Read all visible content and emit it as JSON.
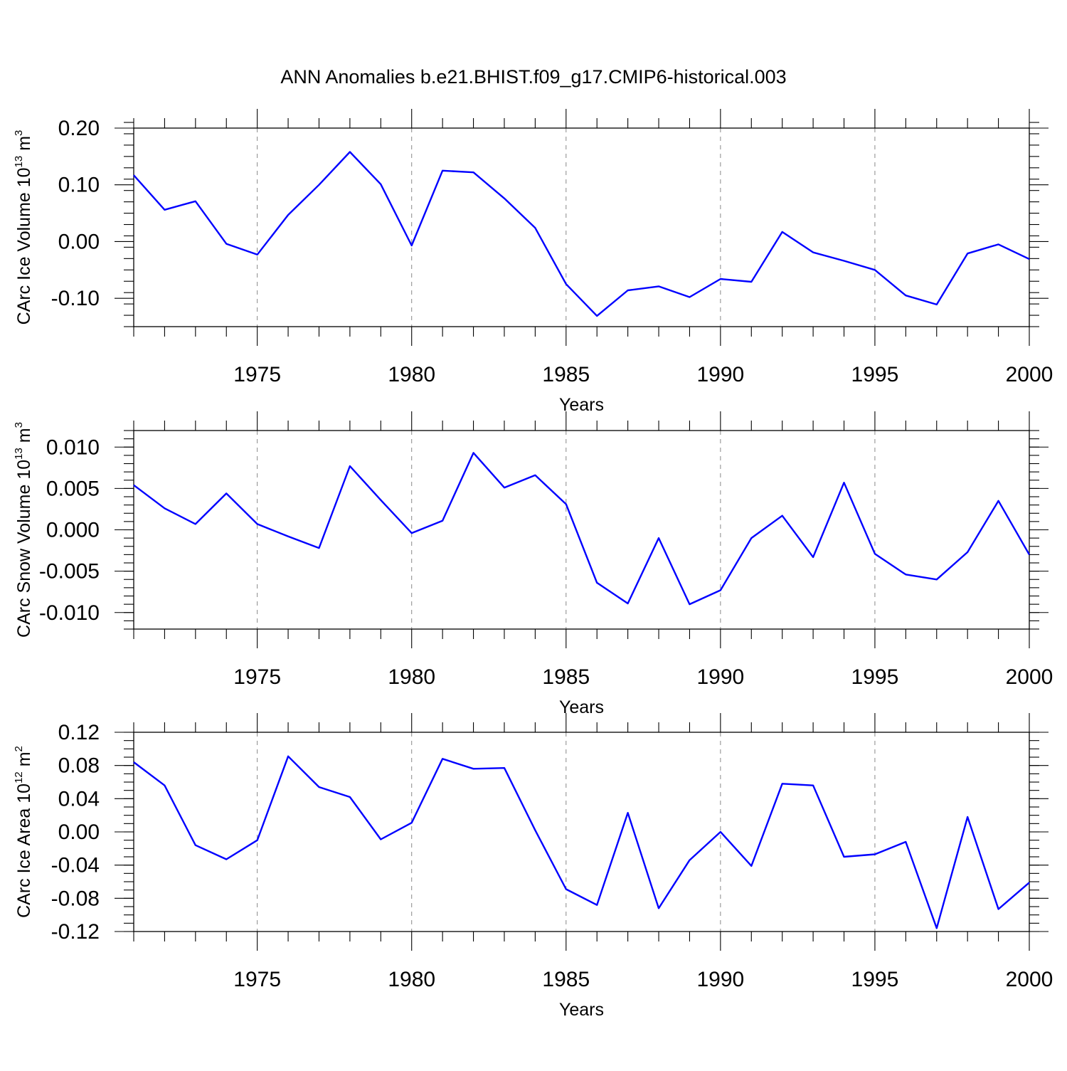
{
  "title": "ANN Anomalies b.e21.BHIST.f09_g17.CMIP6-historical.003",
  "series_color": "#0000ff",
  "chart_data": [
    {
      "type": "line",
      "title": "ANN Anomalies b.e21.BHIST.f09_g17.CMIP6-historical.003",
      "xlabel": "Years",
      "ylabel": {
        "prefix": "CArc Ice Volume 10",
        "sup": "13",
        "unit": " m",
        "unit_sup": "3"
      },
      "xlim": [
        1971,
        2000
      ],
      "ylim": [
        -0.15,
        0.2
      ],
      "x_ticks": [
        1975,
        1980,
        1985,
        1990,
        1995,
        2000
      ],
      "y_ticks": [
        0.2,
        0.1,
        0.0,
        -0.1
      ],
      "y_tick_labels": [
        "0.20",
        "0.10",
        "0.00",
        "-0.10"
      ],
      "y_minor_step": 0.02,
      "grid": "dashed vertical at 5-year ticks",
      "x": [
        1971,
        1972,
        1973,
        1974,
        1975,
        1976,
        1977,
        1978,
        1979,
        1980,
        1981,
        1982,
        1983,
        1984,
        1985,
        1986,
        1987,
        1988,
        1989,
        1990,
        1991,
        1992,
        1993,
        1994,
        1995,
        1996,
        1997,
        1998,
        1999,
        2000
      ],
      "values": [
        0.117,
        0.056,
        0.071,
        -0.004,
        -0.023,
        0.047,
        0.1,
        0.158,
        0.101,
        -0.007,
        0.125,
        0.122,
        0.076,
        0.024,
        -0.075,
        -0.131,
        -0.086,
        -0.079,
        -0.098,
        -0.066,
        -0.071,
        0.017,
        -0.019,
        -0.034,
        -0.05,
        -0.095,
        -0.111,
        -0.021,
        -0.005,
        -0.031
      ]
    },
    {
      "type": "line",
      "xlabel": "Years",
      "ylabel": {
        "prefix": "CArc Snow Volume 10",
        "sup": "13",
        "unit": " m",
        "unit_sup": "3"
      },
      "xlim": [
        1971,
        2000
      ],
      "ylim": [
        -0.012,
        0.012
      ],
      "x_ticks": [
        1975,
        1980,
        1985,
        1990,
        1995,
        2000
      ],
      "y_ticks": [
        0.01,
        0.005,
        0.0,
        -0.005,
        -0.01
      ],
      "y_tick_labels": [
        "0.010",
        "0.005",
        "0.000",
        "-0.005",
        "-0.010"
      ],
      "y_minor_step": 0.001,
      "grid": "dashed vertical at 5-year ticks",
      "x": [
        1971,
        1972,
        1973,
        1974,
        1975,
        1976,
        1977,
        1978,
        1979,
        1980,
        1981,
        1982,
        1983,
        1984,
        1985,
        1986,
        1987,
        1988,
        1989,
        1990,
        1991,
        1992,
        1993,
        1994,
        1995,
        1996,
        1997,
        1998,
        1999,
        2000
      ],
      "values": [
        0.0054,
        0.0026,
        0.0007,
        0.0044,
        0.0007,
        -0.0008,
        -0.0022,
        0.0077,
        0.0036,
        -0.0004,
        0.0011,
        0.0093,
        0.0051,
        0.0066,
        0.0031,
        -0.0064,
        -0.0089,
        -0.001,
        -0.009,
        -0.0073,
        -0.001,
        0.0017,
        -0.0033,
        0.0057,
        -0.0029,
        -0.0054,
        -0.006,
        -0.0027,
        0.0035,
        -0.003
      ]
    },
    {
      "type": "line",
      "xlabel": "Years",
      "ylabel": {
        "prefix": "CArc Ice Area 10",
        "sup": "12",
        "unit": " m",
        "unit_sup": "2"
      },
      "xlim": [
        1971,
        2000
      ],
      "ylim": [
        -0.12,
        0.12
      ],
      "x_ticks": [
        1975,
        1980,
        1985,
        1990,
        1995,
        2000
      ],
      "y_ticks": [
        0.12,
        0.08,
        0.04,
        0.0,
        -0.04,
        -0.08,
        -0.12
      ],
      "y_tick_labels": [
        "0.12",
        "0.08",
        "0.04",
        "0.00",
        "-0.04",
        "-0.08",
        "-0.12"
      ],
      "y_minor_step": 0.01,
      "grid": "dashed vertical at 5-year ticks",
      "x": [
        1971,
        1972,
        1973,
        1974,
        1975,
        1976,
        1977,
        1978,
        1979,
        1980,
        1981,
        1982,
        1983,
        1984,
        1985,
        1986,
        1987,
        1988,
        1989,
        1990,
        1991,
        1992,
        1993,
        1994,
        1995,
        1996,
        1997,
        1998,
        1999,
        2000
      ],
      "values": [
        0.084,
        0.056,
        -0.016,
        -0.033,
        -0.01,
        0.091,
        0.054,
        0.042,
        -0.009,
        0.011,
        0.088,
        0.076,
        0.077,
        0.002,
        -0.069,
        -0.088,
        0.023,
        -0.092,
        -0.034,
        0.0,
        -0.041,
        0.058,
        0.056,
        -0.03,
        -0.027,
        -0.012,
        -0.116,
        0.018,
        -0.093,
        -0.061
      ]
    }
  ]
}
